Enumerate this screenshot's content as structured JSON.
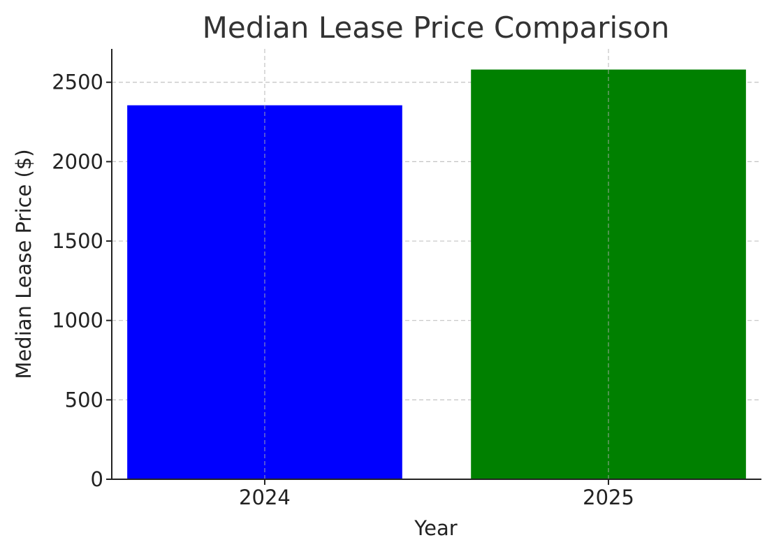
{
  "chart_data": {
    "type": "bar",
    "title": "Median Lease Price Comparison",
    "xlabel": "Year",
    "ylabel": "Median Lease Price ($)",
    "categories": [
      "2024",
      "2025"
    ],
    "values": [
      2355,
      2580
    ],
    "colors": [
      "#0000ff",
      "#008000"
    ],
    "ylim": [
      0,
      2710
    ],
    "yticks": [
      0,
      500,
      1000,
      1500,
      2000,
      2500
    ],
    "grid": true,
    "grid_style": "dashed"
  }
}
